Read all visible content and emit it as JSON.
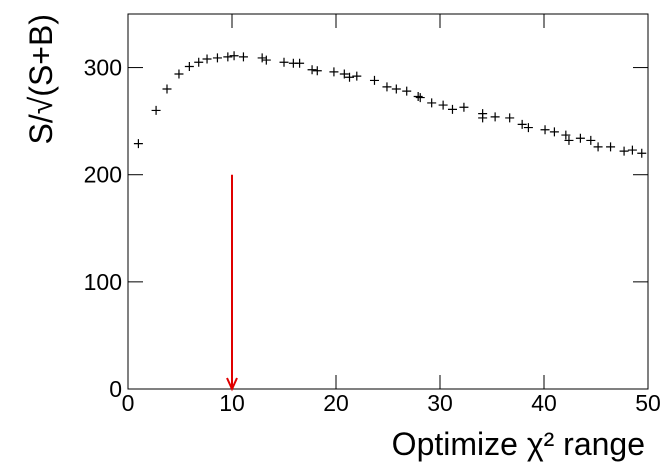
{
  "chart_data": {
    "type": "scatter",
    "x_label": "Optimize χ² range",
    "y_label": "S/√(S+B)",
    "x": [
      1,
      2.7,
      3.75,
      4.9,
      5.9,
      6.8,
      7.6,
      8.6,
      9.6,
      10.2,
      11.1,
      12.9,
      13.3,
      15,
      15.9,
      16.5,
      17.7,
      18.2,
      19.8,
      20.8,
      21.3,
      22,
      23.7,
      24.9,
      25.8,
      26.8,
      27.9,
      28.1,
      29.2,
      30.3,
      31.2,
      32.3,
      34.1,
      34.1,
      35.3,
      36.7,
      37.9,
      38.5,
      40.1,
      41,
      42.1,
      42.4,
      43.5,
      44.5,
      45.2,
      46.4,
      47.7,
      48.5,
      49.4
    ],
    "values": [
      229,
      260,
      280,
      294,
      301,
      305,
      308,
      309,
      310,
      311,
      310,
      309,
      307,
      305,
      304,
      304,
      298,
      297,
      296,
      294,
      291,
      292,
      288,
      282,
      280,
      278,
      273,
      272,
      267,
      265,
      261,
      263,
      257,
      253,
      254,
      253,
      247,
      244,
      242,
      240,
      237,
      232,
      234,
      232,
      226,
      226,
      222,
      223,
      220
    ],
    "color": "#000000",
    "xlim": [
      0,
      50
    ],
    "xticks": [
      0,
      10,
      20,
      30,
      40,
      50
    ],
    "ylim": [
      0,
      350
    ],
    "yticks": [
      0,
      100,
      200,
      300
    ],
    "arrow": {
      "x": 10,
      "y_start": 200,
      "y_end": 0,
      "color": "#e00000"
    }
  }
}
